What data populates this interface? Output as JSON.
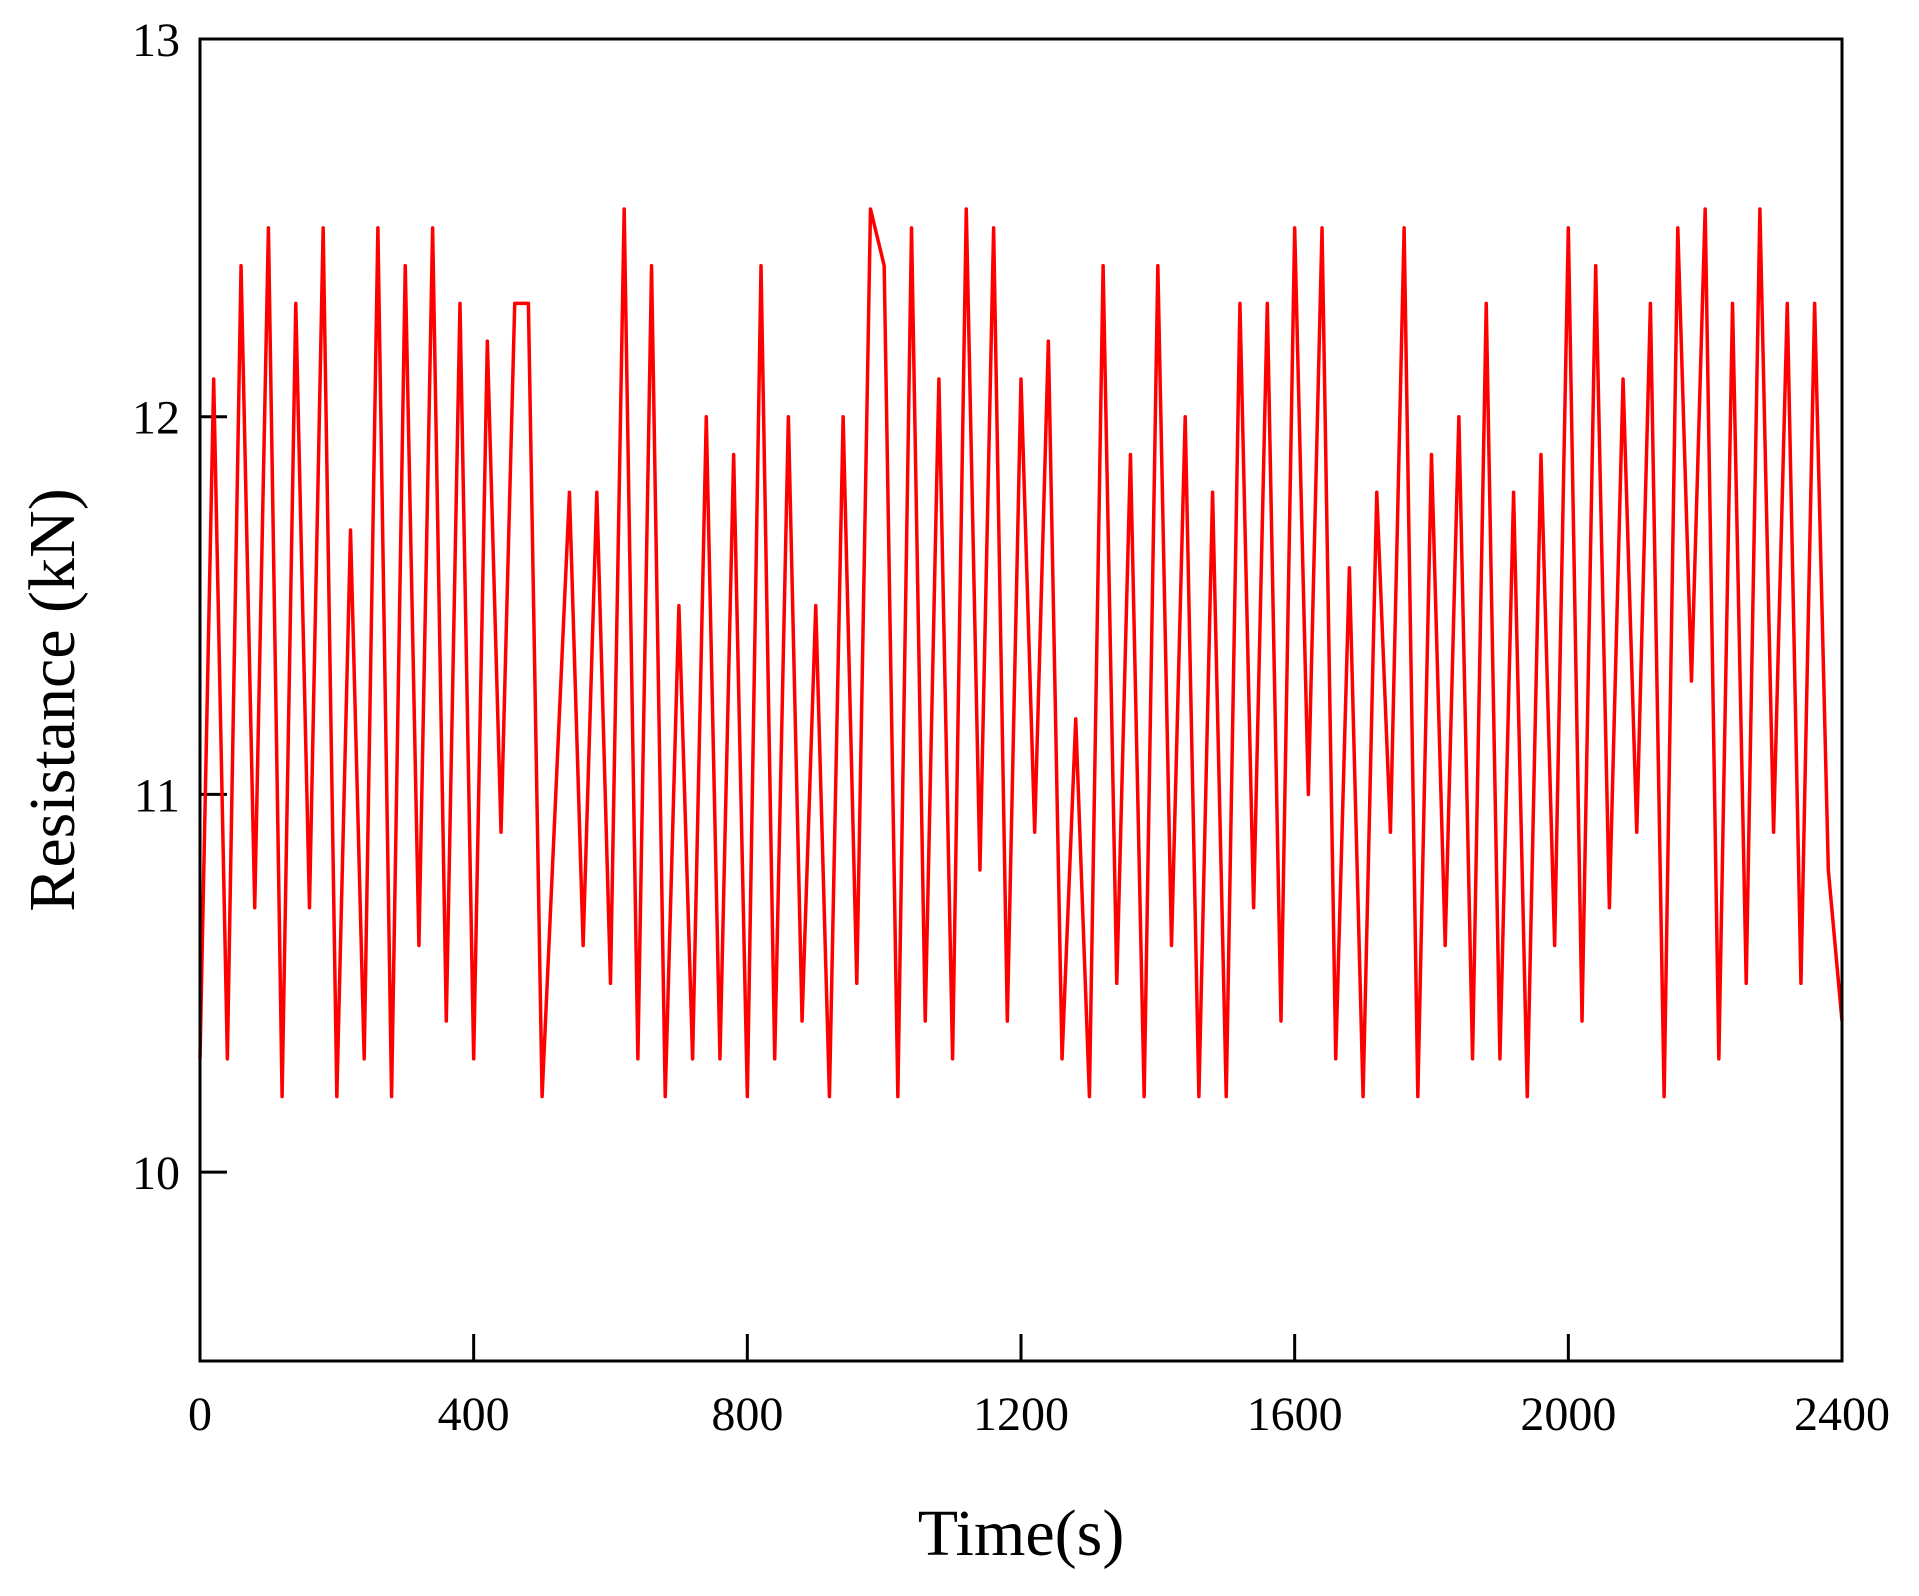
{
  "chart_data": {
    "type": "line",
    "xlabel": "Time(s)",
    "ylabel": "Resistance (kN)",
    "xlim": [
      0,
      2400
    ],
    "xticks": [
      0,
      400,
      800,
      1200,
      1600,
      2000,
      2400
    ],
    "ylim": [
      9.5,
      13
    ],
    "yticks": [
      10,
      11,
      12,
      13
    ],
    "grid": false,
    "series": [
      {
        "color": "#ff0000",
        "x": [
          0,
          20,
          40,
          60,
          80,
          100,
          120,
          140,
          160,
          180,
          200,
          220,
          240,
          260,
          280,
          300,
          320,
          340,
          360,
          380,
          400,
          420,
          440,
          460,
          480,
          500,
          520,
          540,
          560,
          580,
          600,
          620,
          640,
          660,
          680,
          700,
          720,
          740,
          760,
          780,
          800,
          820,
          840,
          860,
          880,
          900,
          920,
          940,
          960,
          980,
          1000,
          1020,
          1040,
          1060,
          1080,
          1100,
          1120,
          1140,
          1160,
          1180,
          1200,
          1220,
          1240,
          1260,
          1280,
          1300,
          1320,
          1340,
          1360,
          1380,
          1400,
          1420,
          1440,
          1460,
          1480,
          1500,
          1520,
          1540,
          1560,
          1580,
          1600,
          1620,
          1640,
          1660,
          1680,
          1700,
          1720,
          1740,
          1760,
          1780,
          1800,
          1820,
          1840,
          1860,
          1880,
          1900,
          1920,
          1940,
          1960,
          1980,
          2000,
          2020,
          2040,
          2060,
          2080,
          2100,
          2120,
          2140,
          2160,
          2180,
          2200,
          2220,
          2240,
          2260,
          2280,
          2300,
          2320,
          2340,
          2360,
          2380,
          2400
        ],
        "values": [
          10.3,
          12.1,
          10.3,
          12.4,
          10.7,
          12.5,
          10.2,
          12.3,
          10.7,
          12.5,
          10.2,
          11.7,
          10.3,
          12.5,
          10.2,
          12.4,
          10.6,
          12.5,
          10.4,
          12.3,
          10.3,
          12.2,
          10.9,
          12.3,
          12.3,
          10.2,
          11.0,
          11.8,
          10.6,
          11.8,
          10.5,
          12.55,
          10.3,
          12.4,
          10.2,
          11.5,
          10.3,
          12.0,
          10.3,
          11.9,
          10.2,
          12.4,
          10.3,
          12.0,
          10.4,
          11.5,
          10.2,
          12.0,
          10.5,
          12.55,
          12.4,
          10.2,
          12.5,
          10.4,
          12.1,
          10.3,
          12.55,
          10.8,
          12.5,
          10.4,
          12.1,
          10.9,
          12.2,
          10.3,
          11.2,
          10.2,
          12.4,
          10.5,
          11.9,
          10.2,
          12.4,
          10.6,
          12.0,
          10.2,
          11.8,
          10.2,
          12.3,
          10.7,
          12.3,
          10.4,
          12.5,
          11.0,
          12.5,
          10.3,
          11.6,
          10.2,
          11.8,
          10.9,
          12.5,
          10.2,
          11.9,
          10.6,
          12.0,
          10.3,
          12.3,
          10.3,
          11.8,
          10.2,
          11.9,
          10.6,
          12.5,
          10.4,
          12.4,
          10.7,
          12.1,
          10.9,
          12.3,
          10.2,
          12.5,
          11.3,
          12.55,
          10.3,
          12.3,
          10.5,
          12.55,
          10.9,
          12.3,
          10.5,
          12.3,
          10.8,
          10.4
        ]
      }
    ]
  }
}
